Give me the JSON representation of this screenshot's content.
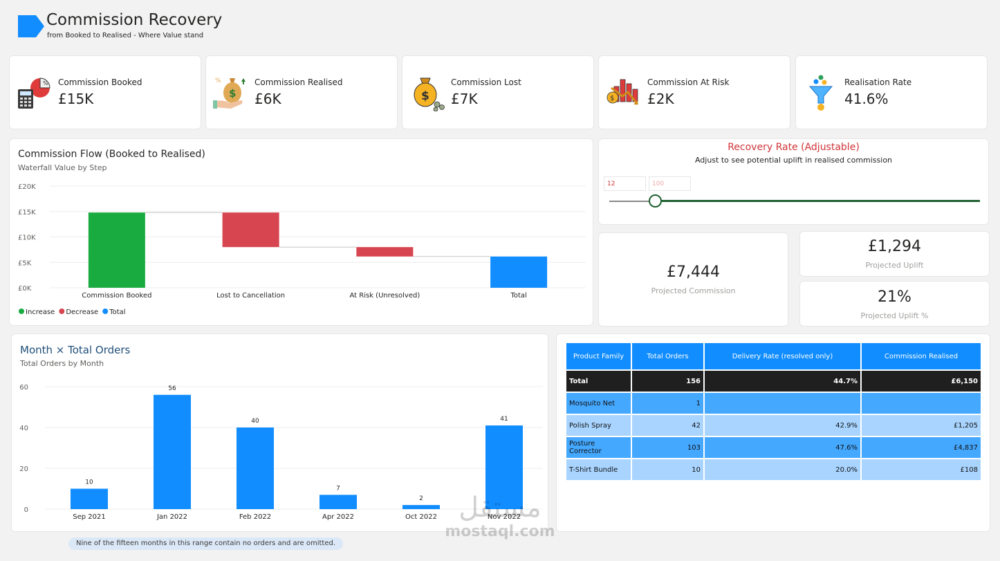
{
  "header": {
    "title": "Commission Recovery",
    "subtitle": "from Booked to Realised - Where Value stand",
    "brand_color": "#118dff"
  },
  "kpis": [
    {
      "label": "Commission Booked",
      "value": "£15K",
      "icon": "calculator-pie-icon"
    },
    {
      "label": "Commission Realised",
      "value": "£6K",
      "icon": "money-bag-hand-icon"
    },
    {
      "label": "Commission Lost",
      "value": "£7K",
      "icon": "money-bag-coins-icon"
    },
    {
      "label": "Commission At Risk",
      "value": "£2K",
      "icon": "falling-chart-icon"
    },
    {
      "label": "Realisation Rate",
      "value": "41.6%",
      "icon": "funnel-icon"
    }
  ],
  "waterfall": {
    "title": "Commission Flow (Booked to Realised)",
    "subtitle": "Waterfall Value by Step",
    "legend": [
      "Increase",
      "Decrease",
      "Total"
    ]
  },
  "recovery": {
    "title": "Recovery Rate (Adjustable)",
    "subtitle": "Adjust to see potential uplift in realised commission",
    "min_value": "12",
    "max_value": "100",
    "slider_value": 12
  },
  "projection": {
    "commission_value": "£7,444",
    "commission_label": "Projected Commission",
    "uplift_value": "£1,294",
    "uplift_label": "Projected Uplift",
    "uplift_pct_value": "21%",
    "uplift_pct_label": "Projected Uplift %"
  },
  "month_chart": {
    "title": "Month × Total Orders",
    "subtitle": "Total Orders by Month",
    "note": "Nine of the fifteen months in this range contain no orders and are omitted."
  },
  "table": {
    "headers": [
      "Product Family",
      "Total Orders",
      "Delivery Rate (resolved only)",
      "Commission Realised"
    ],
    "total": {
      "label": "Total",
      "orders": "156",
      "rate": "44.7%",
      "commission": "£6,150"
    },
    "rows": [
      {
        "family": "Mosquito Net",
        "orders": "1",
        "rate": "",
        "commission": ""
      },
      {
        "family": "Polish Spray",
        "orders": "42",
        "rate": "42.9%",
        "commission": "£1,205"
      },
      {
        "family": "Posture Corrector",
        "orders": "103",
        "rate": "47.6%",
        "commission": "£4,837"
      },
      {
        "family": "T-Shirt Bundle",
        "orders": "10",
        "rate": "20.0%",
        "commission": "£108"
      }
    ]
  },
  "watermark": {
    "text_top": "مستقل",
    "text_bottom": "mostaql.com"
  },
  "chart_data": [
    {
      "type": "bar",
      "subtype": "waterfall",
      "categories": [
        "Commission Booked",
        "Lost to Cancellation",
        "At Risk (Unresolved)",
        "Total"
      ],
      "steps": [
        {
          "category": "Commission Booked",
          "kind": "Increase",
          "start": 0,
          "end": 14800
        },
        {
          "category": "Lost to Cancellation",
          "kind": "Decrease",
          "start": 14800,
          "end": 8000
        },
        {
          "category": "At Risk (Unresolved)",
          "kind": "Decrease",
          "start": 8000,
          "end": 6150
        },
        {
          "category": "Total",
          "kind": "Total",
          "start": 0,
          "end": 6150
        }
      ],
      "colors": {
        "Increase": "#1aab40",
        "Decrease": "#d64550",
        "Total": "#118dff"
      },
      "yticks": [
        "£0K",
        "£5K",
        "£10K",
        "£15K",
        "£20K"
      ],
      "ylim": [
        0,
        20000
      ],
      "legend": [
        "Increase",
        "Decrease",
        "Total"
      ],
      "legend_position": "bottom-left",
      "grid": true
    },
    {
      "type": "bar",
      "categories": [
        "Sep 2021",
        "Jan 2022",
        "Feb 2022",
        "Apr 2022",
        "Oct 2022",
        "Nov 2022"
      ],
      "values": [
        10,
        56,
        40,
        7,
        2,
        41
      ],
      "yticks": [
        0,
        20,
        40,
        60
      ],
      "ylim": [
        0,
        60
      ],
      "color": "#118dff",
      "data_labels": true,
      "grid": true
    }
  ]
}
